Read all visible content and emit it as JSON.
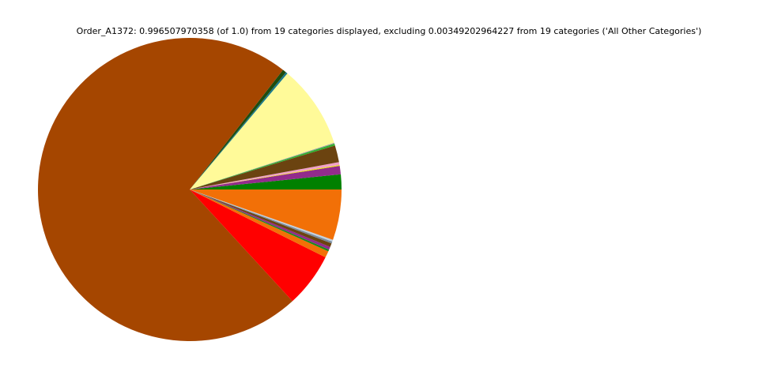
{
  "chart_data": {
    "type": "pie",
    "title": "Order_A1372: 0.996507970358 (of 1.0) from 19 categories displayed, excluding 0.00349202964227 from 19 categories ('All Other Categories')",
    "start_angle_deg": 0,
    "direction": "counterclockwise",
    "slices": [
      {
        "value": 0.016,
        "color": "#008000"
      },
      {
        "value": 0.009,
        "color": "#922b8c"
      },
      {
        "value": 0.001,
        "color": "#e8e800"
      },
      {
        "value": 0.003,
        "color": "#f0a0c8"
      },
      {
        "value": 0.018,
        "color": "#6b4310"
      },
      {
        "value": 0.002,
        "color": "#30b030"
      },
      {
        "value": 0.001,
        "color": "#a0a0a0"
      },
      {
        "value": 0.089,
        "color": "#fffa99"
      },
      {
        "value": 0.002,
        "color": "#1a7a8a"
      },
      {
        "value": 0.004,
        "color": "#1e4d0f"
      },
      {
        "value": 0.725,
        "color": "#a54600"
      },
      {
        "value": 0.058,
        "color": "#ff0000"
      },
      {
        "value": 0.007,
        "color": "#f27007"
      },
      {
        "value": 0.002,
        "color": "#1a8a1a"
      },
      {
        "value": 0.003,
        "color": "#922b8c"
      },
      {
        "value": 0.004,
        "color": "#6b4310"
      },
      {
        "value": 0.002,
        "color": "#7a8a9a"
      },
      {
        "value": 0.002,
        "color": "#c0d0e0"
      },
      {
        "value": 0.054,
        "color": "#f27007"
      }
    ]
  }
}
